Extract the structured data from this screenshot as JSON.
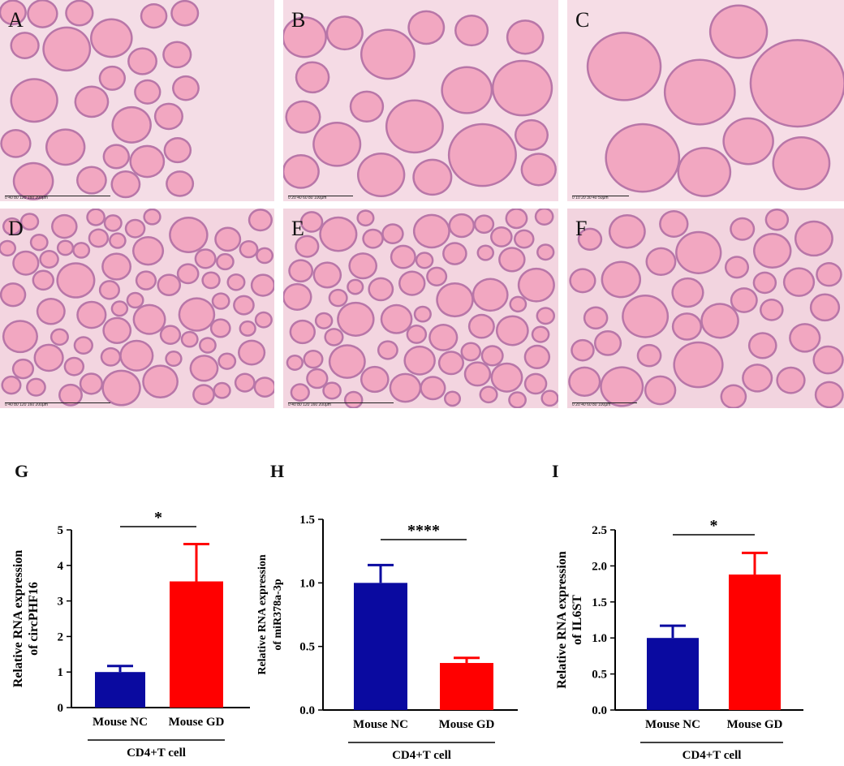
{
  "histology_panels": [
    {
      "letter": "A",
      "scale_text": "0  40  80  120  160  200μm",
      "bg": "#f4dde6"
    },
    {
      "letter": "B",
      "scale_text": "0  20  40  60  80  100μm",
      "bg": "#f5dbe5"
    },
    {
      "letter": "C",
      "scale_text": "0  10  20  30  40  50μm",
      "bg": "#f6dde6"
    },
    {
      "letter": "D",
      "scale_text": "0  40  80  120  160  200μm",
      "bg": "#f3d5e0"
    },
    {
      "letter": "E",
      "scale_text": "0  40  80  120  160  200μm",
      "bg": "#f3d5e0"
    },
    {
      "letter": "F",
      "scale_text": "0  20  40  60  80  100μm",
      "bg": "#f2d4df"
    }
  ],
  "colors": {
    "nc": "#0a0aa0",
    "gd": "#ff0000",
    "colloid": "#f2a7c1",
    "tissue": "#b876a8"
  },
  "chart_data": [
    {
      "panel": "G",
      "type": "bar",
      "categories": [
        "Mouse NC",
        "Mouse GD"
      ],
      "values": [
        1.0,
        3.55
      ],
      "errors": [
        0.17,
        1.05
      ],
      "ylabel_lines": [
        "Relative RNA expression",
        "of circPHF16"
      ],
      "ylim": [
        0,
        5
      ],
      "yticks": [
        "0",
        "1",
        "2",
        "3",
        "4",
        "5"
      ],
      "ytick_values": [
        0,
        1,
        2,
        3,
        4,
        5
      ],
      "significance": "*",
      "group_label": "CD4+T cell"
    },
    {
      "panel": "H",
      "type": "bar",
      "categories": [
        "Mouse NC",
        "Mouse GD"
      ],
      "values": [
        1.0,
        0.37
      ],
      "errors": [
        0.14,
        0.04
      ],
      "ylabel_lines": [
        "Relative RNA expression",
        "of miR378a-3p"
      ],
      "ylim": [
        0,
        1.5
      ],
      "yticks": [
        "0.0",
        "0.5",
        "1.0",
        "1.5"
      ],
      "ytick_values": [
        0,
        0.5,
        1.0,
        1.5
      ],
      "significance": "****",
      "group_label": "CD4+T cell"
    },
    {
      "panel": "I",
      "type": "bar",
      "categories": [
        "Mouse NC",
        "Mouse GD"
      ],
      "values": [
        1.0,
        1.88
      ],
      "errors": [
        0.17,
        0.3
      ],
      "ylabel_lines": [
        "Relative RNA expression",
        "of IL6ST"
      ],
      "ylim": [
        0,
        2.5
      ],
      "yticks": [
        "0.0",
        "0.5",
        "1.0",
        "1.5",
        "2.0",
        "2.5"
      ],
      "ytick_values": [
        0,
        0.5,
        1.0,
        1.5,
        2.0,
        2.5
      ],
      "significance": "*",
      "group_label": "CD4+T cell"
    }
  ]
}
